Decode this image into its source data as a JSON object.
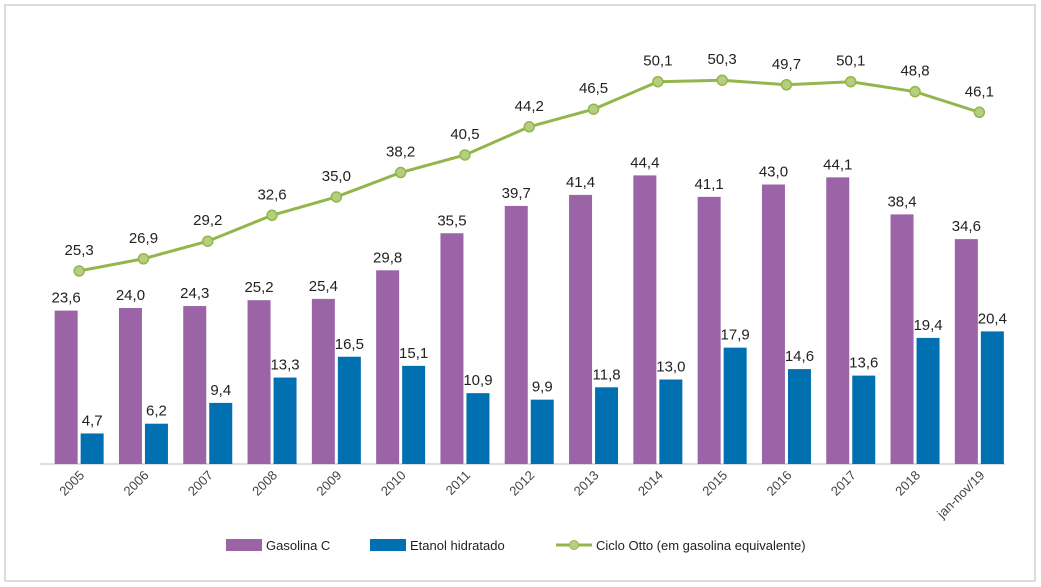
{
  "chart_data": {
    "type": "bar_line",
    "categories": [
      "2005",
      "2006",
      "2007",
      "2008",
      "2009",
      "2010",
      "2011",
      "2012",
      "2013",
      "2014",
      "2015",
      "2016",
      "2017",
      "2018",
      "jan-nov/19"
    ],
    "series": [
      {
        "name": "Gasolina C",
        "type": "bar",
        "color": "#9a64a6",
        "values": [
          23.6,
          24.0,
          24.3,
          25.2,
          25.4,
          29.8,
          35.5,
          39.7,
          41.4,
          44.4,
          41.1,
          43.0,
          44.1,
          38.4,
          34.6
        ],
        "value_labels": [
          "23,6",
          "24,0",
          "24,3",
          "25,2",
          "25,4",
          "29,8",
          "35,5",
          "39,7",
          "41,4",
          "44,4",
          "41,1",
          "43,0",
          "44,1",
          "38,4",
          "34,6"
        ]
      },
      {
        "name": "Etanol hidratado",
        "type": "bar",
        "color": "#0070b0",
        "values": [
          4.7,
          6.2,
          9.4,
          13.3,
          16.5,
          15.1,
          10.9,
          9.9,
          11.8,
          13.0,
          17.9,
          14.6,
          13.6,
          19.4,
          20.4
        ],
        "value_labels": [
          "4,7",
          "6,2",
          "9,4",
          "13,3",
          "16,5",
          "15,1",
          "10,9",
          "9,9",
          "11,8",
          "13,0",
          "17,9",
          "14,6",
          "13,6",
          "19,4",
          "20,4"
        ]
      },
      {
        "name": "Ciclo Otto (em gasolina equivalente)",
        "type": "line",
        "axis": "y2",
        "color": "#93b64c",
        "values": [
          25.3,
          26.9,
          29.2,
          32.6,
          35.0,
          38.2,
          40.5,
          44.2,
          46.5,
          50.1,
          50.3,
          49.7,
          50.1,
          48.8,
          46.1
        ],
        "value_labels": [
          "25,3",
          "26,9",
          "29,2",
          "32,6",
          "35,0",
          "38,2",
          "40,5",
          "44,2",
          "46,5",
          "50,1",
          "50,3",
          "49,7",
          "50,1",
          "48,8",
          "46,1"
        ]
      }
    ]
  }
}
